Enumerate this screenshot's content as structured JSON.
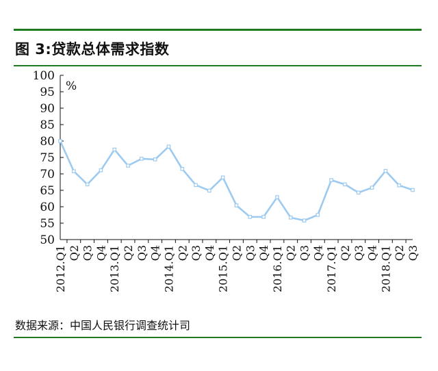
{
  "figure": {
    "title": "图 3:贷款总体需求指数",
    "source": "数据来源：中国人民银行调查统计司",
    "accent_color": "#1f7a1f"
  },
  "chart_data": {
    "type": "line",
    "title": "图 3:贷款总体需求指数",
    "ylabel": "%",
    "xlabel": "",
    "ylim": [
      50,
      100
    ],
    "yticks": [
      50,
      55,
      60,
      65,
      70,
      75,
      80,
      85,
      90,
      95,
      100
    ],
    "grid": false,
    "legend": "none",
    "categories": [
      "2012.Q1",
      "Q2",
      "Q3",
      "Q4",
      "2013.Q1",
      "Q2",
      "Q3",
      "Q4",
      "2014.Q1",
      "Q2",
      "Q3",
      "Q4",
      "2015.Q1",
      "Q2",
      "Q3",
      "Q4",
      "2016.Q1",
      "Q2",
      "Q3",
      "Q4",
      "2017.Q1",
      "Q2",
      "Q3",
      "Q4",
      "2018.Q1",
      "Q2",
      "Q3"
    ],
    "series": [
      {
        "color": "#9ccaf0",
        "values": [
          80.0,
          70.8,
          66.8,
          71.1,
          77.4,
          72.5,
          74.6,
          74.4,
          78.3,
          71.5,
          66.6,
          64.9,
          68.9,
          60.4,
          56.9,
          56.9,
          62.9,
          56.7,
          55.8,
          57.5,
          68.1,
          66.8,
          64.3,
          65.8,
          70.9,
          66.5,
          65.1
        ]
      }
    ]
  }
}
